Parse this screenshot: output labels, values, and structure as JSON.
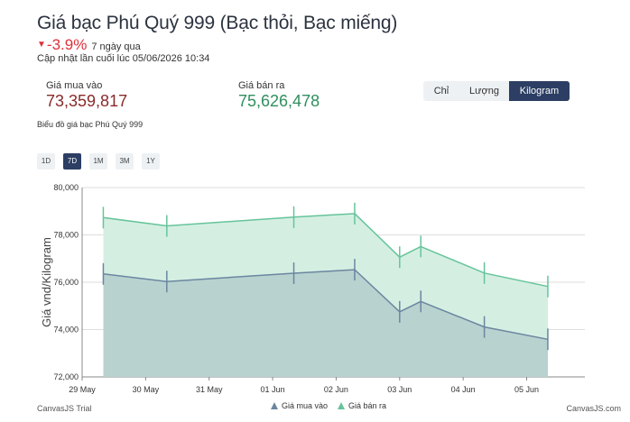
{
  "header": {
    "title": "Giá bạc Phú Quý 999 (Bạc thỏi, Bạc miếng)",
    "change_value": "-3.9%",
    "change_period": "7 ngày qua",
    "updated": "Cập nhật lần cuối lúc 05/06/2026 10:34",
    "down_color": "#e0303a"
  },
  "prices": {
    "buy_label": "Giá mua vào",
    "buy_value": "73,359,817",
    "sell_label": "Giá bán ra",
    "sell_value": "75,626,478"
  },
  "unit_tabs": [
    {
      "label": "Chỉ",
      "active": false
    },
    {
      "label": "Lượng",
      "active": false
    },
    {
      "label": "Kilogram",
      "active": true
    }
  ],
  "chart_caption": "Biểu đồ giá bạc Phú Quý 999",
  "range_tabs": [
    {
      "label": "1D",
      "active": false
    },
    {
      "label": "7D",
      "active": true
    },
    {
      "label": "1M",
      "active": false
    },
    {
      "label": "3M",
      "active": false
    },
    {
      "label": "1Y",
      "active": false
    }
  ],
  "footer": {
    "left": "CanvasJS Trial",
    "right": "CanvasJS.com"
  },
  "chart_data": {
    "type": "area",
    "title": "",
    "xlabel": "",
    "ylabel": "Giá vnd/Kilogram",
    "x_ticks": [
      "29 May",
      "30 May",
      "31 May",
      "01 Jun",
      "02 Jun",
      "03 Jun",
      "04 Jun",
      "05 Jun"
    ],
    "ylim": [
      72000,
      80000
    ],
    "y_ticks": [
      "72,000",
      "74,000",
      "76,000",
      "78,000",
      "80,000"
    ],
    "y_tick_values": [
      72000,
      74000,
      76000,
      78000,
      80000
    ],
    "x_ticks_dates": [
      "2026-05-29",
      "2026-05-30",
      "2026-05-31",
      "2026-06-01",
      "2026-06-02",
      "2026-06-03",
      "2026-06-04",
      "2026-06-05"
    ],
    "x": [
      "2026-05-29 08:00",
      "2026-05-30 08:00",
      "2026-06-01 08:00",
      "2026-06-02 07:00",
      "2026-06-03 00:00",
      "2026-06-03 08:00",
      "2026-06-04 08:00",
      "2026-06-05 08:00"
    ],
    "series": [
      {
        "name": "Giá mua vào",
        "color": "#6b86a0",
        "fill": "#b8d2cf",
        "values": [
          76350,
          76030,
          76380,
          76530,
          74750,
          75190,
          74110,
          73590
        ]
      },
      {
        "name": "Giá bán ra",
        "color": "#66c49a",
        "fill": "#d4efe2",
        "values": [
          78730,
          78380,
          78750,
          78900,
          77060,
          77510,
          76390,
          75820
        ]
      }
    ],
    "grid": true,
    "legend": "bottom-center"
  }
}
